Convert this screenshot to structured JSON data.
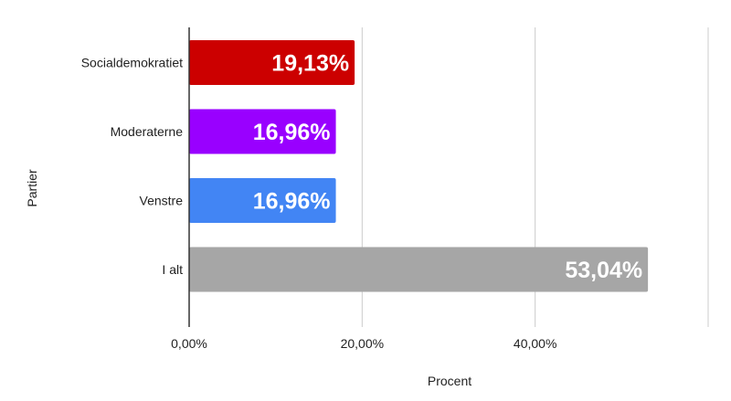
{
  "chart_data": {
    "type": "bar",
    "orientation": "horizontal",
    "categories": [
      "Socialdemokratiet",
      "Moderaterne",
      "Venstre",
      "I alt"
    ],
    "values": [
      19.13,
      16.96,
      16.96,
      53.04
    ],
    "data_labels": [
      "19,13%",
      "16,96%",
      "16,96%",
      "53,04%"
    ],
    "colors": [
      "#cc0000",
      "#9900ff",
      "#4285f4",
      "#a6a6a6"
    ],
    "xlabel": "Procent",
    "ylabel": "Partier",
    "xlim": [
      0,
      60
    ],
    "ticks": [
      {
        "value": 0,
        "label": "0,00%"
      },
      {
        "value": 20,
        "label": "20,00%"
      },
      {
        "value": 40,
        "label": "40,00%"
      }
    ],
    "gridlines": [
      0,
      20,
      40,
      60
    ],
    "grid": true,
    "legend": "none"
  }
}
